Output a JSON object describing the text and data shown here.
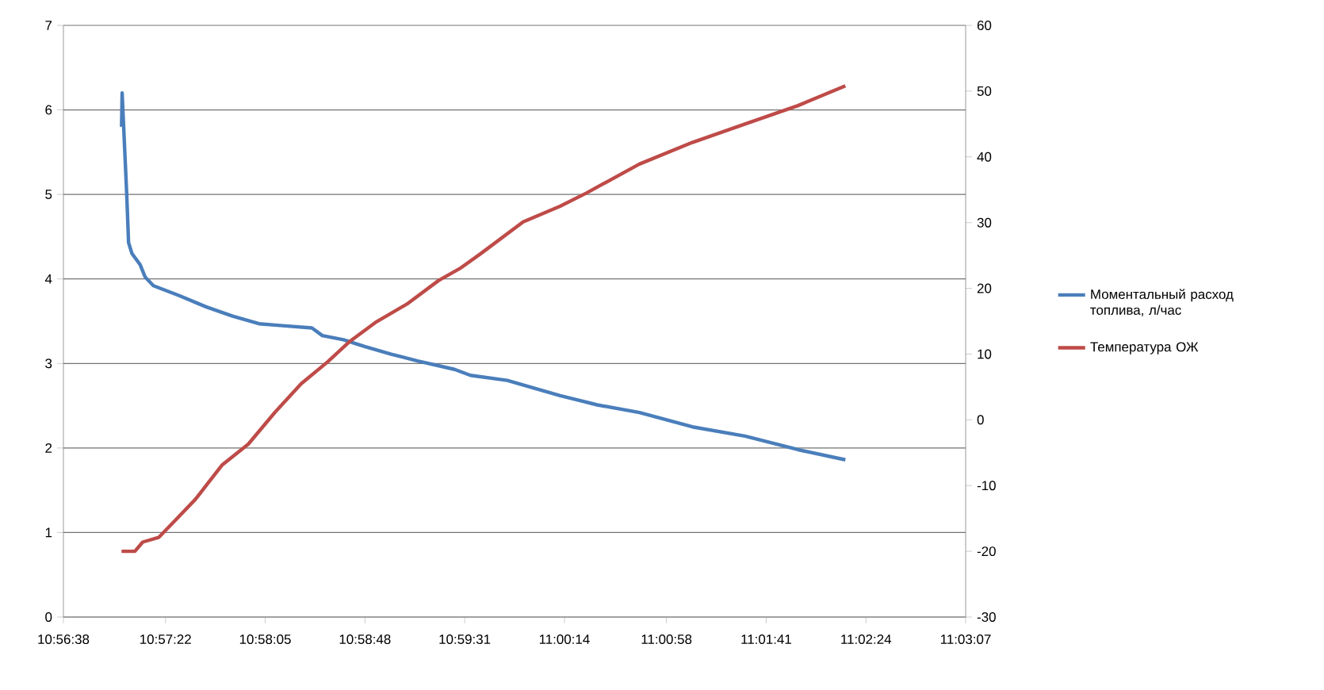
{
  "chart_data": {
    "type": "line",
    "xlim": [
      10.943889,
      11.051944
    ],
    "xticks": [
      {
        "value": 10.943889,
        "label": "10:56:38"
      },
      {
        "value": 10.956111,
        "label": "10:57:22"
      },
      {
        "value": 10.968056,
        "label": "10:58:05"
      },
      {
        "value": 10.98,
        "label": "10:58:48"
      },
      {
        "value": 10.991944,
        "label": "10:59:31"
      },
      {
        "value": 11.003889,
        "label": "11:00:14"
      },
      {
        "value": 11.016111,
        "label": "11:00:58"
      },
      {
        "value": 11.028056,
        "label": "11:01:41"
      },
      {
        "value": 11.04,
        "label": "11:02:24"
      },
      {
        "value": 11.051944,
        "label": "11:03:07"
      }
    ],
    "ylim": [
      0,
      7
    ],
    "yticks": [
      0,
      1,
      2,
      3,
      4,
      5,
      6,
      7
    ],
    "y2lim": [
      -30,
      60
    ],
    "y2ticks": [
      -30,
      -20,
      -10,
      0,
      10,
      20,
      30,
      40,
      50,
      60
    ],
    "grid": "y",
    "legend": "right",
    "series": [
      {
        "name": "Моментальный расход топлива, л/час",
        "color": "#4a7ebb",
        "x": [
          10.95085,
          10.95092,
          10.95147,
          10.95169,
          10.9521,
          10.95307,
          10.95369,
          10.95467,
          10.95782,
          10.96097,
          10.96416,
          10.96732,
          10.96984,
          10.97365,
          10.9749,
          10.97743,
          10.97996,
          10.98315,
          10.9863,
          10.99073,
          10.99264,
          10.99704,
          11.00338,
          11.00782,
          11.01287,
          11.01922,
          11.02552,
          11.03187,
          11.03754
        ],
        "values": [
          5.8,
          6.2,
          5.0,
          4.43,
          4.3,
          4.17,
          4.02,
          3.92,
          3.8,
          3.67,
          3.56,
          3.47,
          3.45,
          3.42,
          3.33,
          3.28,
          3.2,
          3.11,
          3.03,
          2.93,
          2.86,
          2.8,
          2.62,
          2.51,
          2.42,
          2.25,
          2.14,
          1.98,
          1.86
        ]
      },
      {
        "name": "Температура ОЖ",
        "color": "#be4b48",
        "axis": "y2",
        "x": [
          10.95085,
          10.95245,
          10.95338,
          10.95529,
          10.9572,
          10.95969,
          10.96287,
          10.96603,
          10.96919,
          10.97237,
          10.97552,
          10.97806,
          10.98124,
          10.98502,
          10.98883,
          10.99135,
          10.99389,
          10.99895,
          11.00338,
          11.00653,
          11.01287,
          11.01922,
          11.02552,
          11.03187,
          11.03754
        ],
        "values": [
          -20,
          -20,
          -18.6,
          -17.9,
          -15.4,
          -12.1,
          -6.9,
          -3.7,
          1.1,
          5.5,
          8.8,
          11.8,
          14.8,
          17.6,
          21.2,
          23,
          25.3,
          30.1,
          32.5,
          34.5,
          38.9,
          42.2,
          45,
          47.8,
          50.8
        ]
      }
    ]
  }
}
